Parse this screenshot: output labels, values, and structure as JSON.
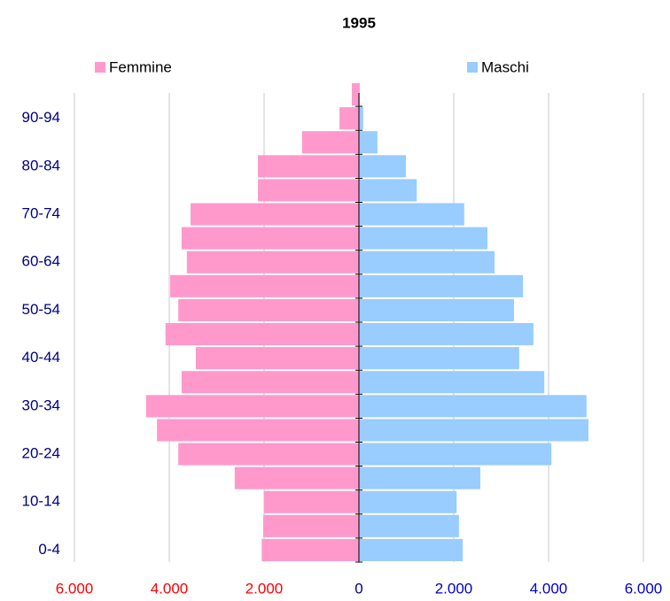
{
  "chart_data": {
    "type": "pyramid",
    "title": "1995",
    "categories": [
      "0-4",
      null,
      "10-14",
      null,
      "20-24",
      null,
      "30-34",
      null,
      "40-44",
      null,
      "50-54",
      null,
      "60-64",
      null,
      "70-74",
      null,
      "80-84",
      null,
      "90-94",
      null
    ],
    "series": [
      {
        "name": "Femmine",
        "color": "#ff99cc",
        "values": [
          -2050,
          -2020,
          -2000,
          -2620,
          -3810,
          -4260,
          -4490,
          -3740,
          -3440,
          -4080,
          -3810,
          -3980,
          -3630,
          -3740,
          -3550,
          -2130,
          -2130,
          -1200,
          -410,
          -150
        ]
      },
      {
        "name": "Maschi",
        "color": "#99ccff",
        "values": [
          2190,
          2110,
          2060,
          2560,
          4060,
          4840,
          4800,
          3910,
          3380,
          3680,
          3270,
          3460,
          2860,
          2710,
          2220,
          1220,
          990,
          390,
          90,
          20
        ]
      }
    ],
    "xlim": [
      -6000,
      6000
    ],
    "xticks": [
      {
        "value": -6000,
        "label": "6.000"
      },
      {
        "value": -4000,
        "label": "4.000"
      },
      {
        "value": -2000,
        "label": "2.000"
      },
      0,
      {
        "value": 2000,
        "label": "2.000"
      },
      {
        "value": 4000,
        "label": "4.000"
      },
      {
        "value": 6000,
        "label": "6.000"
      }
    ],
    "grid": true
  }
}
